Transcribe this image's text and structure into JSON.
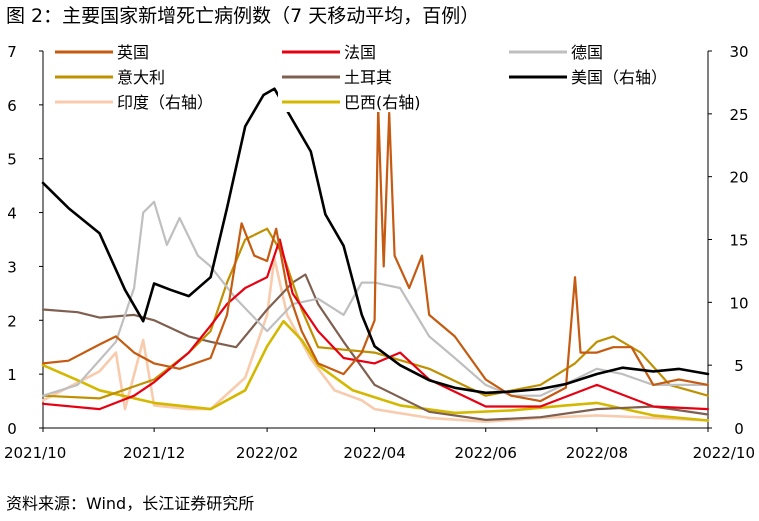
{
  "title": "图 2：主要国家新增死亡病例数（7 天移动平均，百例）",
  "source": "资料来源：Wind，长江证券研究所",
  "chart_data": {
    "type": "line",
    "x_ticks": [
      "2021/10",
      "2021/12",
      "2022/02",
      "2022/04",
      "2022/06",
      "2022/08",
      "2022/10"
    ],
    "x_range": [
      "2021/10/01",
      "2022/10/01"
    ],
    "y_left": {
      "min": 0,
      "max": 7,
      "ticks": [
        "0",
        "1",
        "2",
        "3",
        "4",
        "5",
        "6",
        "7"
      ]
    },
    "y_right": {
      "min": 0,
      "max": 30,
      "ticks": [
        "0",
        "5",
        "10",
        "15",
        "20",
        "25",
        "30"
      ]
    },
    "series": [
      {
        "name": "英国",
        "color": "#c55a11",
        "axis": "left",
        "width": 2.2,
        "points": [
          [
            "2021-10-01",
            1.2
          ],
          [
            "2021-10-15",
            1.25
          ],
          [
            "2021-11-01",
            1.55
          ],
          [
            "2021-11-10",
            1.7
          ],
          [
            "2021-11-20",
            1.4
          ],
          [
            "2021-12-01",
            1.2
          ],
          [
            "2021-12-15",
            1.1
          ],
          [
            "2022-01-01",
            1.3
          ],
          [
            "2022-01-10",
            2.1
          ],
          [
            "2022-01-18",
            3.8
          ],
          [
            "2022-01-25",
            3.2
          ],
          [
            "2022-02-01",
            3.1
          ],
          [
            "2022-02-06",
            3.7
          ],
          [
            "2022-02-12",
            2.6
          ],
          [
            "2022-02-20",
            1.8
          ],
          [
            "2022-03-01",
            1.2
          ],
          [
            "2022-03-15",
            1.0
          ],
          [
            "2022-03-25",
            1.4
          ],
          [
            "2022-04-01",
            2.0
          ],
          [
            "2022-04-03",
            5.95
          ],
          [
            "2022-04-06",
            3.0
          ],
          [
            "2022-04-09",
            5.85
          ],
          [
            "2022-04-12",
            3.2
          ],
          [
            "2022-04-20",
            2.6
          ],
          [
            "2022-04-27",
            3.2
          ],
          [
            "2022-05-01",
            2.1
          ],
          [
            "2022-05-15",
            1.7
          ],
          [
            "2022-06-01",
            0.9
          ],
          [
            "2022-06-15",
            0.6
          ],
          [
            "2022-07-01",
            0.5
          ],
          [
            "2022-07-15",
            0.75
          ],
          [
            "2022-07-20",
            2.8
          ],
          [
            "2022-07-23",
            1.4
          ],
          [
            "2022-08-01",
            1.4
          ],
          [
            "2022-08-10",
            1.5
          ],
          [
            "2022-08-20",
            1.5
          ],
          [
            "2022-09-01",
            0.8
          ],
          [
            "2022-09-15",
            0.9
          ],
          [
            "2022-10-01",
            0.8
          ]
        ]
      },
      {
        "name": "法国",
        "color": "#e60012",
        "axis": "left",
        "width": 2.2,
        "points": [
          [
            "2021-10-01",
            0.45
          ],
          [
            "2021-11-01",
            0.35
          ],
          [
            "2021-11-20",
            0.6
          ],
          [
            "2021-12-01",
            0.85
          ],
          [
            "2021-12-20",
            1.4
          ],
          [
            "2022-01-01",
            1.9
          ],
          [
            "2022-01-10",
            2.3
          ],
          [
            "2022-01-20",
            2.6
          ],
          [
            "2022-02-01",
            2.8
          ],
          [
            "2022-02-08",
            3.5
          ],
          [
            "2022-02-15",
            2.5
          ],
          [
            "2022-03-01",
            1.8
          ],
          [
            "2022-03-15",
            1.3
          ],
          [
            "2022-04-01",
            1.2
          ],
          [
            "2022-04-15",
            1.4
          ],
          [
            "2022-05-01",
            0.9
          ],
          [
            "2022-06-01",
            0.4
          ],
          [
            "2022-07-01",
            0.4
          ],
          [
            "2022-08-01",
            0.8
          ],
          [
            "2022-09-01",
            0.4
          ],
          [
            "2022-10-01",
            0.35
          ]
        ]
      },
      {
        "name": "德国",
        "color": "#bfbfbf",
        "axis": "left",
        "width": 2.2,
        "points": [
          [
            "2021-10-01",
            0.6
          ],
          [
            "2021-10-20",
            0.8
          ],
          [
            "2021-11-10",
            1.6
          ],
          [
            "2021-11-20",
            2.6
          ],
          [
            "2021-11-25",
            4.0
          ],
          [
            "2021-12-01",
            4.2
          ],
          [
            "2021-12-08",
            3.4
          ],
          [
            "2021-12-15",
            3.9
          ],
          [
            "2021-12-25",
            3.2
          ],
          [
            "2022-01-01",
            3.0
          ],
          [
            "2022-01-15",
            2.4
          ],
          [
            "2022-02-01",
            1.8
          ],
          [
            "2022-02-15",
            2.3
          ],
          [
            "2022-03-01",
            2.4
          ],
          [
            "2022-03-15",
            2.1
          ],
          [
            "2022-03-25",
            2.7
          ],
          [
            "2022-04-01",
            2.7
          ],
          [
            "2022-04-15",
            2.6
          ],
          [
            "2022-05-01",
            1.7
          ],
          [
            "2022-05-15",
            1.3
          ],
          [
            "2022-06-01",
            0.8
          ],
          [
            "2022-06-15",
            0.6
          ],
          [
            "2022-07-01",
            0.6
          ],
          [
            "2022-07-20",
            0.9
          ],
          [
            "2022-08-01",
            1.1
          ],
          [
            "2022-08-15",
            1.0
          ],
          [
            "2022-09-01",
            0.8
          ],
          [
            "2022-09-15",
            0.8
          ],
          [
            "2022-10-01",
            0.8
          ]
        ]
      },
      {
        "name": "意大利",
        "color": "#bf9000",
        "axis": "left",
        "width": 2.2,
        "points": [
          [
            "2021-10-01",
            0.6
          ],
          [
            "2021-11-01",
            0.55
          ],
          [
            "2021-12-01",
            0.9
          ],
          [
            "2021-12-20",
            1.4
          ],
          [
            "2022-01-01",
            1.8
          ],
          [
            "2022-01-10",
            2.7
          ],
          [
            "2022-01-20",
            3.5
          ],
          [
            "2022-02-01",
            3.7
          ],
          [
            "2022-02-10",
            3.2
          ],
          [
            "2022-02-20",
            2.2
          ],
          [
            "2022-03-01",
            1.5
          ],
          [
            "2022-04-01",
            1.4
          ],
          [
            "2022-05-01",
            1.1
          ],
          [
            "2022-06-01",
            0.6
          ],
          [
            "2022-07-01",
            0.8
          ],
          [
            "2022-07-20",
            1.2
          ],
          [
            "2022-08-01",
            1.6
          ],
          [
            "2022-08-10",
            1.7
          ],
          [
            "2022-08-25",
            1.4
          ],
          [
            "2022-09-10",
            0.8
          ],
          [
            "2022-10-01",
            0.6
          ]
        ]
      },
      {
        "name": "土耳其",
        "color": "#7f6050",
        "axis": "left",
        "width": 2.2,
        "points": [
          [
            "2021-10-01",
            2.2
          ],
          [
            "2021-10-20",
            2.15
          ],
          [
            "2021-11-01",
            2.05
          ],
          [
            "2021-11-20",
            2.1
          ],
          [
            "2021-12-01",
            2.0
          ],
          [
            "2021-12-20",
            1.7
          ],
          [
            "2022-01-01",
            1.6
          ],
          [
            "2022-01-15",
            1.5
          ],
          [
            "2022-02-01",
            2.2
          ],
          [
            "2022-02-15",
            2.7
          ],
          [
            "2022-02-22",
            2.85
          ],
          [
            "2022-03-01",
            2.3
          ],
          [
            "2022-03-15",
            1.6
          ],
          [
            "2022-04-01",
            0.8
          ],
          [
            "2022-05-01",
            0.3
          ],
          [
            "2022-06-01",
            0.15
          ],
          [
            "2022-07-01",
            0.2
          ],
          [
            "2022-08-01",
            0.35
          ],
          [
            "2022-09-01",
            0.4
          ],
          [
            "2022-10-01",
            0.25
          ]
        ]
      },
      {
        "name": "美国（右轴）",
        "color": "#000000",
        "axis": "right",
        "width": 2.6,
        "points": [
          [
            "2021-10-01",
            19.5
          ],
          [
            "2021-10-15",
            17.5
          ],
          [
            "2021-11-01",
            15.5
          ],
          [
            "2021-11-15",
            11.0
          ],
          [
            "2021-11-25",
            8.5
          ],
          [
            "2021-12-01",
            11.5
          ],
          [
            "2021-12-10",
            11.0
          ],
          [
            "2021-12-20",
            10.5
          ],
          [
            "2022-01-01",
            12.0
          ],
          [
            "2022-01-10",
            17.5
          ],
          [
            "2022-01-20",
            24.0
          ],
          [
            "2022-01-30",
            26.5
          ],
          [
            "2022-02-05",
            27.0
          ],
          [
            "2022-02-15",
            24.5
          ],
          [
            "2022-02-25",
            22.0
          ],
          [
            "2022-03-05",
            17.0
          ],
          [
            "2022-03-15",
            14.5
          ],
          [
            "2022-03-25",
            9.0
          ],
          [
            "2022-04-01",
            6.5
          ],
          [
            "2022-04-15",
            5.0
          ],
          [
            "2022-05-01",
            3.8
          ],
          [
            "2022-05-15",
            3.2
          ],
          [
            "2022-06-01",
            2.8
          ],
          [
            "2022-06-15",
            2.9
          ],
          [
            "2022-07-01",
            3.1
          ],
          [
            "2022-07-15",
            3.5
          ],
          [
            "2022-08-01",
            4.3
          ],
          [
            "2022-08-15",
            4.8
          ],
          [
            "2022-09-01",
            4.5
          ],
          [
            "2022-09-15",
            4.7
          ],
          [
            "2022-10-01",
            4.3
          ]
        ]
      },
      {
        "name": "印度（右轴）",
        "color": "#f8cbad",
        "axis": "right",
        "width": 2.6,
        "points": [
          [
            "2021-10-01",
            2.2
          ],
          [
            "2021-11-01",
            4.5
          ],
          [
            "2021-11-10",
            6.0
          ],
          [
            "2021-11-15",
            1.5
          ],
          [
            "2021-11-25",
            7.0
          ],
          [
            "2021-12-01",
            1.8
          ],
          [
            "2021-12-20",
            1.5
          ],
          [
            "2022-01-01",
            1.5
          ],
          [
            "2022-01-20",
            4.0
          ],
          [
            "2022-02-01",
            9.0
          ],
          [
            "2022-02-05",
            13.5
          ],
          [
            "2022-02-12",
            9.0
          ],
          [
            "2022-02-25",
            5.5
          ],
          [
            "2022-03-10",
            3.0
          ],
          [
            "2022-03-25",
            2.2
          ],
          [
            "2022-04-01",
            1.5
          ],
          [
            "2022-05-01",
            0.8
          ],
          [
            "2022-06-01",
            0.5
          ],
          [
            "2022-07-01",
            0.8
          ],
          [
            "2022-08-01",
            1.0
          ],
          [
            "2022-09-01",
            0.8
          ],
          [
            "2022-10-01",
            0.6
          ]
        ]
      },
      {
        "name": "巴西(右轴)",
        "color": "#d4b800",
        "axis": "right",
        "width": 2.6,
        "points": [
          [
            "2021-10-01",
            5.0
          ],
          [
            "2021-10-20",
            3.8
          ],
          [
            "2021-11-01",
            3.0
          ],
          [
            "2021-12-01",
            2.0
          ],
          [
            "2022-01-01",
            1.5
          ],
          [
            "2022-01-20",
            3.0
          ],
          [
            "2022-02-01",
            6.5
          ],
          [
            "2022-02-10",
            8.5
          ],
          [
            "2022-02-20",
            7.0
          ],
          [
            "2022-03-01",
            5.0
          ],
          [
            "2022-03-20",
            3.0
          ],
          [
            "2022-04-15",
            1.8
          ],
          [
            "2022-05-15",
            1.2
          ],
          [
            "2022-06-15",
            1.4
          ],
          [
            "2022-07-15",
            1.8
          ],
          [
            "2022-08-01",
            2.0
          ],
          [
            "2022-09-01",
            1.0
          ],
          [
            "2022-10-01",
            0.6
          ]
        ]
      }
    ],
    "legend": {
      "placement": "top",
      "columns": 3,
      "order": [
        0,
        1,
        2,
        3,
        4,
        5,
        6,
        7
      ]
    },
    "grid": false
  }
}
